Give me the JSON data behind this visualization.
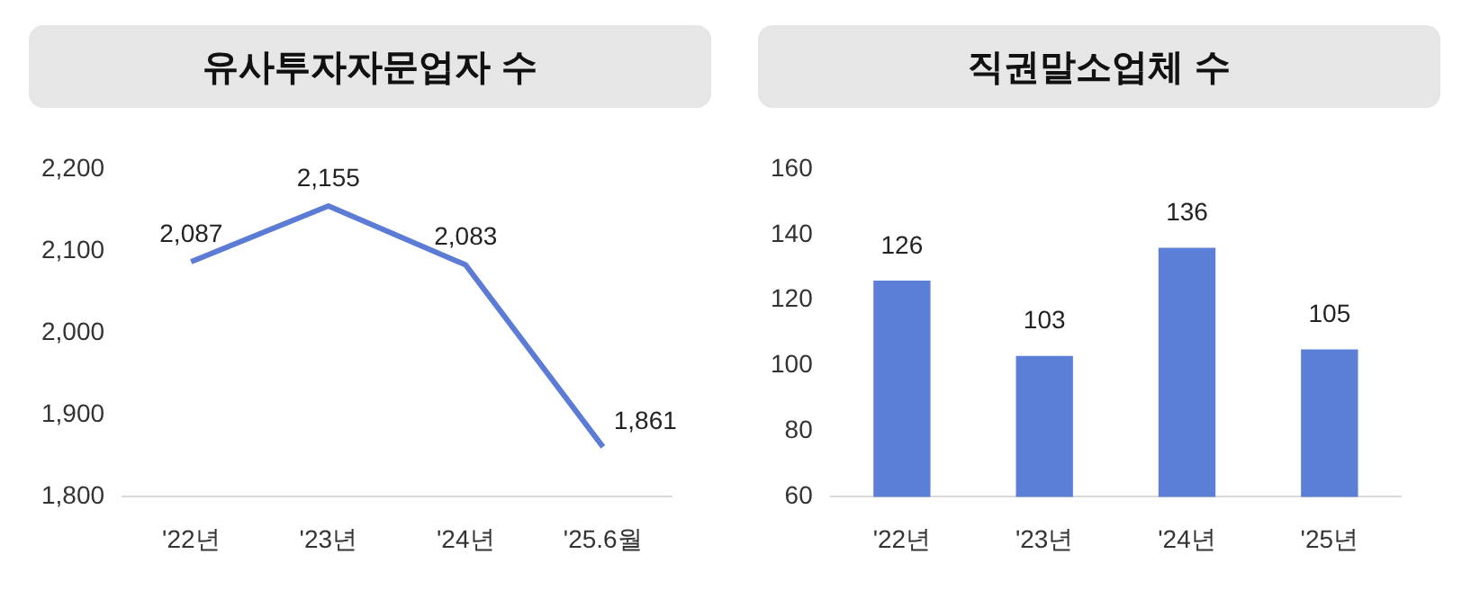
{
  "chart_data": [
    {
      "type": "line",
      "title": "유사투자자문업자 수",
      "categories": [
        "'22년",
        "'23년",
        "'24년",
        "'25.6월"
      ],
      "values": [
        2087,
        2155,
        2083,
        1861
      ],
      "value_labels": [
        "2,087",
        "2,155",
        "2,083",
        "1,861"
      ],
      "color": "#5b7bd5",
      "marker": "none",
      "line_style": "solid",
      "ylim": [
        1800,
        2200
      ],
      "yticks": [
        {
          "value": 1800,
          "label": "1,800"
        },
        {
          "value": 1900,
          "label": "1,900"
        },
        {
          "value": 2000,
          "label": "2,000"
        },
        {
          "value": 2100,
          "label": "2,100"
        },
        {
          "value": 2200,
          "label": "2,200"
        }
      ]
    },
    {
      "type": "bar",
      "title": "직권말소업체 수",
      "categories": [
        "'22년",
        "'23년",
        "'24년",
        "'25년"
      ],
      "values": [
        126,
        103,
        136,
        105
      ],
      "data_labels": true,
      "color": "#5b7fd6",
      "ylim": [
        60,
        160
      ],
      "yticks": [
        60,
        80,
        100,
        120,
        140,
        160
      ]
    }
  ]
}
